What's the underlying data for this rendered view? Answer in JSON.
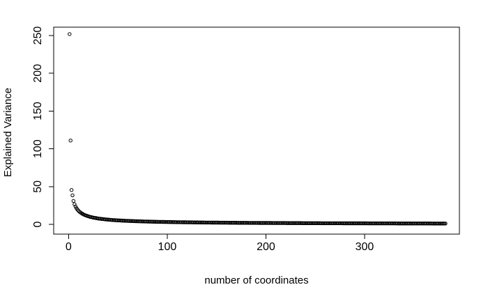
{
  "chart_data": {
    "type": "scatter",
    "title": "",
    "xlabel": "number of coordinates",
    "ylabel": "Explained Variance",
    "marker": "open-circle",
    "point_color": "#000000",
    "axis_color": "#000000",
    "background": "#ffffff",
    "grid": false,
    "legend": null,
    "x_ticks": [
      0,
      100,
      200,
      300
    ],
    "y_ticks": [
      0,
      50,
      100,
      150,
      200,
      250
    ],
    "xlim": [
      -15.1,
      396.1
    ],
    "ylim": [
      -12.9,
      261.1
    ],
    "n_points": 382,
    "x_data_range": [
      1,
      382
    ],
    "points_head": [
      [
        1,
        252
      ],
      [
        2,
        111
      ],
      [
        3,
        45.5
      ],
      [
        4,
        38.5
      ],
      [
        5,
        31
      ],
      [
        6,
        26.6
      ],
      [
        7,
        23.7
      ],
      [
        8,
        21.4
      ],
      [
        9,
        19.6
      ],
      [
        10,
        18.1
      ],
      [
        11,
        16.8
      ],
      [
        12,
        15.7
      ],
      [
        13,
        14.8
      ],
      [
        14,
        14
      ],
      [
        15,
        13.3
      ],
      [
        16,
        12.6
      ],
      [
        17,
        12.1
      ],
      [
        18,
        11.6
      ],
      [
        19,
        11.1
      ],
      [
        20,
        10.7
      ],
      [
        21,
        10.3
      ],
      [
        22,
        9.9
      ],
      [
        23,
        9.6
      ],
      [
        24,
        9.3
      ],
      [
        25,
        9
      ],
      [
        26,
        8.7
      ],
      [
        27,
        8.5
      ],
      [
        28,
        8.3
      ],
      [
        29,
        8
      ],
      [
        30,
        7.8
      ],
      [
        31,
        7.6
      ],
      [
        32,
        7.5
      ],
      [
        33,
        7.3
      ],
      [
        34,
        7.1
      ],
      [
        35,
        7
      ],
      [
        36,
        6.8
      ],
      [
        37,
        6.7
      ],
      [
        38,
        6.6
      ],
      [
        39,
        6.4
      ],
      [
        40,
        6.3
      ]
    ],
    "tail_model": {
      "description": "y = coef / x^exponent for the remaining overlapping points",
      "x_start": 41,
      "x_end": 382,
      "coef": 104,
      "exponent": 0.76
    }
  }
}
